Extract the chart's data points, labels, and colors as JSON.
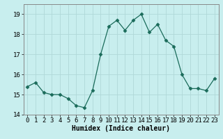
{
  "x": [
    0,
    1,
    2,
    3,
    4,
    5,
    6,
    7,
    8,
    9,
    10,
    11,
    12,
    13,
    14,
    15,
    16,
    17,
    18,
    19,
    20,
    21,
    22,
    23
  ],
  "y": [
    15.4,
    15.6,
    15.1,
    15.0,
    15.0,
    14.8,
    14.45,
    14.35,
    15.2,
    17.0,
    18.4,
    18.7,
    18.2,
    18.7,
    19.0,
    18.1,
    18.5,
    17.7,
    17.4,
    16.0,
    15.3,
    15.3,
    15.2,
    15.8
  ],
  "line_color": "#1a6b5a",
  "marker": "D",
  "marker_size": 2.5,
  "bg_color": "#c8eeee",
  "grid_color": "#b0d8d8",
  "xlabel": "Humidex (Indice chaleur)",
  "ylim": [
    14,
    19.5
  ],
  "xlim": [
    -0.5,
    23.5
  ],
  "yticks": [
    14,
    15,
    16,
    17,
    18,
    19
  ],
  "xticks": [
    0,
    1,
    2,
    3,
    4,
    5,
    6,
    7,
    8,
    9,
    10,
    11,
    12,
    13,
    14,
    15,
    16,
    17,
    18,
    19,
    20,
    21,
    22,
    23
  ],
  "xlabel_fontsize": 7,
  "tick_fontsize": 6.5,
  "spine_color": "#888888"
}
